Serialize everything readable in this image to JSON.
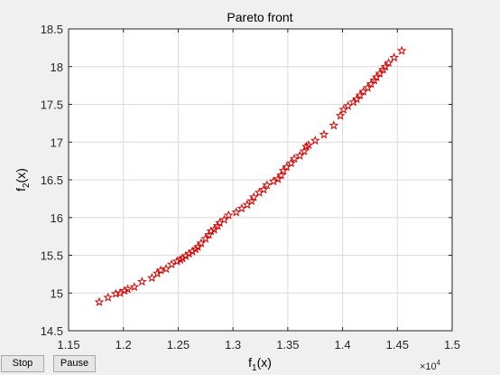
{
  "window": {
    "stop_label": "Stop",
    "pause_label": "Pause"
  },
  "colors": {
    "figure_bg": "#f0f0f0",
    "axes_bg": "#ffffff",
    "grid": "#dcdcdc",
    "marker": "#d40000",
    "text": "#262626"
  },
  "chart_data": {
    "type": "scatter",
    "title": "Pareto front",
    "xlabel_main": "f",
    "xlabel_sub": "1",
    "xlabel_tail": "(x)",
    "ylabel_main": "f",
    "ylabel_sub": "2",
    "ylabel_tail": "(x)",
    "x_exponent_base": "×10",
    "x_exponent_power": "4",
    "xlim": [
      1.15,
      1.5
    ],
    "ylim": [
      14.5,
      18.5
    ],
    "xticks": [
      "1.15",
      "1.2",
      "1.25",
      "1.3",
      "1.35",
      "1.4",
      "1.45",
      "1.5"
    ],
    "yticks": [
      "14.5",
      "15",
      "15.5",
      "16",
      "16.5",
      "17",
      "17.5",
      "18",
      "18.5"
    ],
    "grid": true,
    "marker": "pentagram",
    "series": [
      {
        "x": [
          1.178,
          1.186,
          1.193,
          1.197,
          1.201,
          1.204,
          1.21,
          1.217,
          1.226,
          1.231,
          1.234,
          1.239,
          1.244,
          1.249,
          1.252,
          1.254,
          1.257,
          1.26,
          1.263,
          1.266,
          1.268,
          1.271,
          1.275,
          1.278,
          1.28,
          1.283,
          1.286,
          1.288,
          1.292,
          1.296,
          1.303,
          1.308,
          1.313,
          1.317,
          1.319,
          1.324,
          1.328,
          1.331,
          1.337,
          1.341,
          1.344,
          1.346,
          1.349,
          1.353,
          1.356,
          1.361,
          1.365,
          1.367,
          1.369,
          1.375,
          1.383,
          1.392,
          1.398,
          1.401,
          1.405,
          1.41,
          1.413,
          1.416,
          1.419,
          1.423,
          1.426,
          1.429,
          1.431,
          1.434,
          1.437,
          1.439,
          1.442,
          1.447,
          1.454
        ],
        "y": [
          14.88,
          14.94,
          14.99,
          15.0,
          15.03,
          15.05,
          15.08,
          15.15,
          15.2,
          15.26,
          15.3,
          15.32,
          15.38,
          15.42,
          15.44,
          15.46,
          15.49,
          15.52,
          15.55,
          15.58,
          15.61,
          15.66,
          15.72,
          15.77,
          15.82,
          15.84,
          15.89,
          15.93,
          15.97,
          16.03,
          16.07,
          16.12,
          16.17,
          16.22,
          16.27,
          16.33,
          16.37,
          16.43,
          16.48,
          16.51,
          16.56,
          16.62,
          16.67,
          16.72,
          16.78,
          16.82,
          16.88,
          16.94,
          16.96,
          17.02,
          17.1,
          17.22,
          17.35,
          17.43,
          17.48,
          17.53,
          17.57,
          17.62,
          17.67,
          17.72,
          17.77,
          17.82,
          17.86,
          17.91,
          17.96,
          18.0,
          18.05,
          18.12,
          18.21
        ]
      }
    ]
  }
}
